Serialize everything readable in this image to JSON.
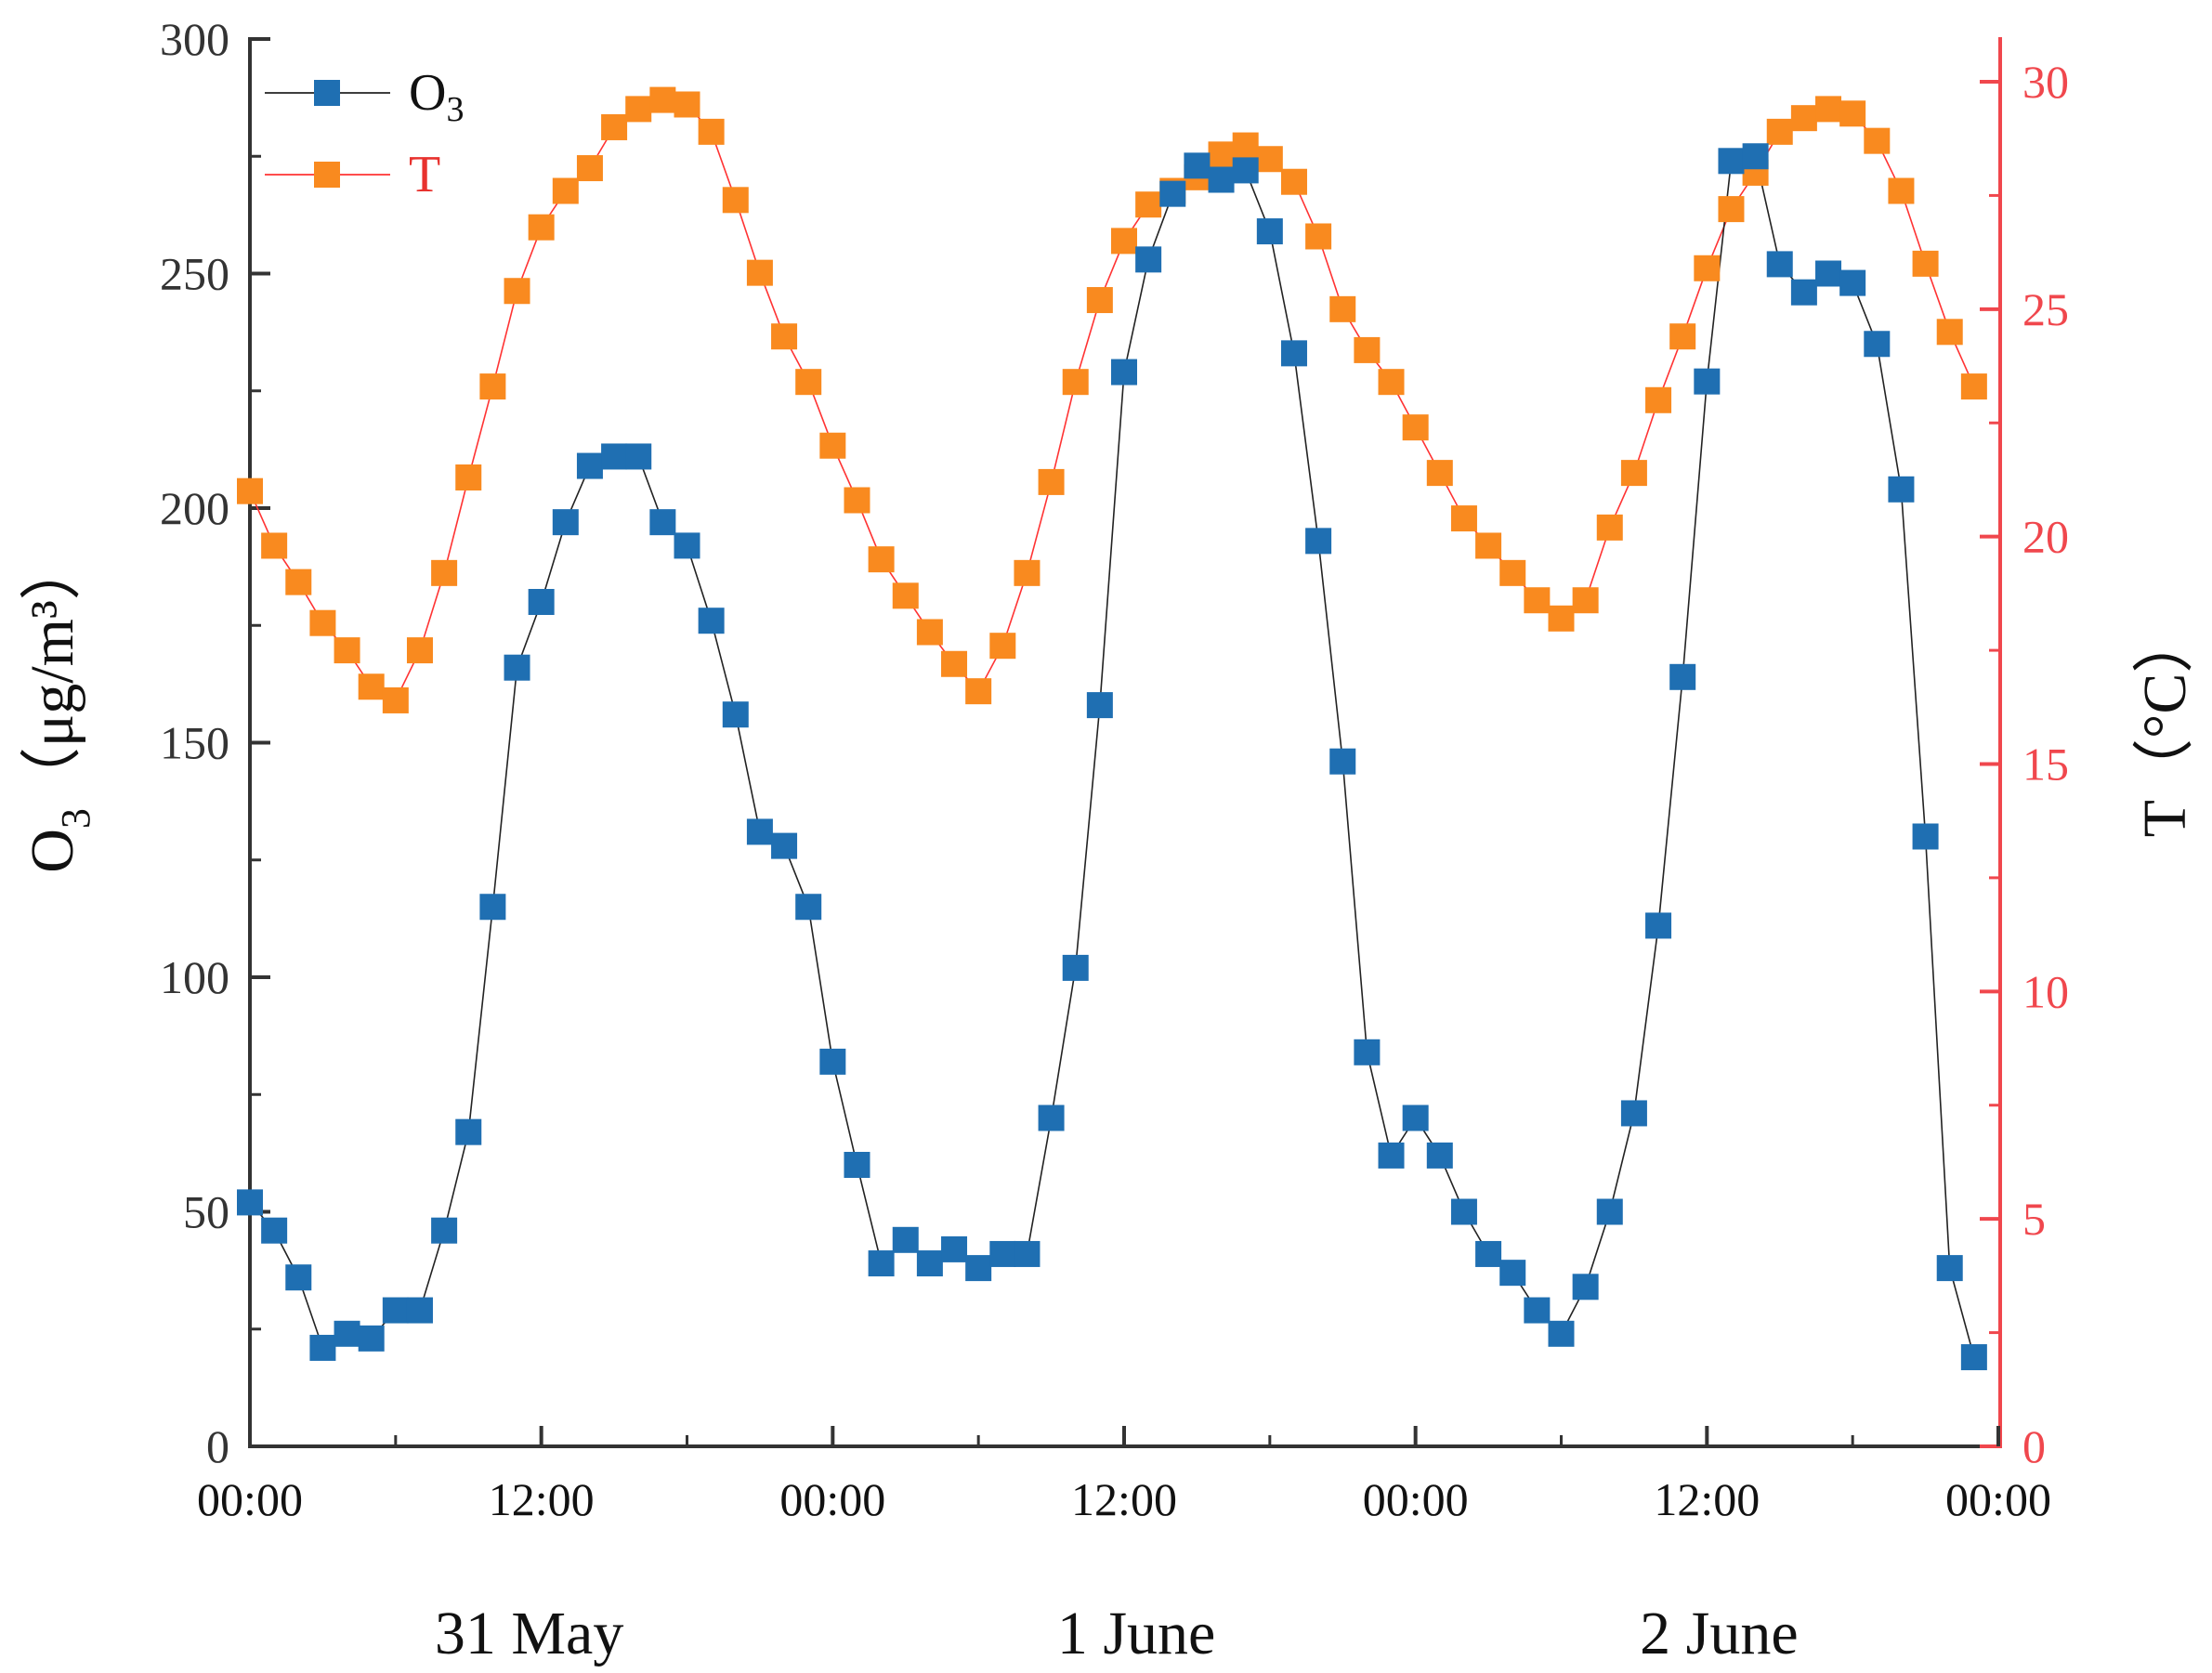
{
  "colors": {
    "o3": "#1f6fb2",
    "t": "#f98a1f",
    "t_axis": "#f0474d",
    "axis": "#333333",
    "line_o3": "#222222",
    "line_t": "#ff3333"
  },
  "chart_data": {
    "type": "line",
    "x_unit": "hours since 31 May 00:00",
    "x_range": [
      0,
      72
    ],
    "x_ticks": [
      {
        "value": 0,
        "label": "00:00"
      },
      {
        "value": 12,
        "label": "12:00"
      },
      {
        "value": 24,
        "label": "00:00"
      },
      {
        "value": 36,
        "label": "12:00"
      },
      {
        "value": 48,
        "label": "00:00"
      },
      {
        "value": 60,
        "label": "12:00"
      },
      {
        "value": 72,
        "label": "00:00"
      }
    ],
    "day_labels": [
      {
        "center": 11.5,
        "label": "31 May"
      },
      {
        "center": 36.5,
        "label": "1 June"
      },
      {
        "center": 60.5,
        "label": "2 June"
      }
    ],
    "y_left": {
      "label_main": "O",
      "label_sub": "3",
      "label_unit": "（μg/m³）",
      "range": [
        0,
        300
      ],
      "ticks": [
        0,
        50,
        100,
        150,
        200,
        250,
        300
      ]
    },
    "y_right": {
      "label": "T（°C）",
      "range": [
        0,
        30
      ],
      "ticks": [
        0,
        5,
        10,
        15,
        20,
        25,
        30
      ]
    },
    "legend": [
      {
        "key": "o3",
        "main": "O",
        "sub": "3"
      },
      {
        "key": "t",
        "main": "T",
        "sub": ""
      }
    ],
    "legend_position": "top-left",
    "series": [
      {
        "name": "O3",
        "axis": "left",
        "x": [
          0,
          1,
          2,
          3,
          4,
          5,
          6,
          7,
          8,
          9,
          10,
          11,
          12,
          13,
          14,
          15,
          16,
          17,
          18,
          19,
          20,
          21,
          22,
          23,
          24,
          25,
          26,
          27,
          28,
          29,
          30,
          31,
          32,
          33,
          34,
          35,
          36,
          37,
          38,
          39,
          40,
          41,
          42,
          43,
          44,
          45,
          46,
          47,
          48,
          49,
          50,
          51,
          52,
          53,
          54,
          55,
          56,
          57,
          58,
          59,
          60,
          61,
          62,
          63,
          64,
          65,
          66,
          67,
          68,
          69,
          70,
          71
        ],
        "values": [
          52,
          46,
          36,
          21,
          24,
          23,
          29,
          29,
          46,
          67,
          115,
          166,
          180,
          197,
          209,
          211,
          211,
          197,
          192,
          176,
          156,
          131,
          128,
          115,
          82,
          60,
          39,
          44,
          39,
          42,
          38,
          41,
          41,
          70,
          102,
          158,
          229,
          253,
          267,
          273,
          270,
          272,
          259,
          233,
          193,
          146,
          84,
          62,
          70,
          62,
          50,
          41,
          37,
          29,
          24,
          34,
          50,
          71,
          111,
          164,
          227,
          274,
          275,
          252,
          246,
          250,
          248,
          235,
          204,
          130,
          38,
          19
        ]
      },
      {
        "name": "T",
        "axis": "right",
        "x": [
          0,
          1,
          2,
          3,
          4,
          5,
          6,
          7,
          8,
          9,
          10,
          11,
          12,
          13,
          14,
          15,
          16,
          17,
          18,
          19,
          20,
          21,
          22,
          23,
          24,
          25,
          26,
          27,
          28,
          29,
          30,
          31,
          32,
          33,
          34,
          35,
          36,
          37,
          38,
          39,
          40,
          41,
          42,
          43,
          44,
          45,
          46,
          47,
          48,
          49,
          50,
          51,
          52,
          53,
          54,
          55,
          56,
          57,
          58,
          59,
          60,
          61,
          62,
          63,
          64,
          65,
          66,
          67,
          68,
          69,
          70,
          71
        ],
        "values": [
          21.0,
          19.8,
          19.0,
          18.1,
          17.5,
          16.7,
          16.4,
          17.5,
          19.2,
          21.3,
          23.3,
          25.4,
          26.8,
          27.6,
          28.1,
          29.0,
          29.4,
          29.6,
          29.5,
          28.9,
          27.4,
          25.8,
          24.4,
          23.4,
          22.0,
          20.8,
          19.5,
          18.7,
          17.9,
          17.2,
          16.6,
          17.6,
          19.2,
          21.2,
          23.4,
          25.2,
          26.5,
          27.3,
          27.6,
          27.9,
          28.4,
          28.6,
          28.3,
          27.8,
          26.6,
          25.0,
          24.1,
          23.4,
          22.4,
          21.4,
          20.4,
          19.8,
          19.2,
          18.6,
          18.2,
          18.6,
          20.2,
          21.4,
          23.0,
          24.4,
          25.9,
          27.2,
          28.0,
          28.9,
          29.2,
          29.4,
          29.3,
          28.7,
          27.6,
          26.0,
          24.5,
          23.3
        ]
      }
    ]
  }
}
